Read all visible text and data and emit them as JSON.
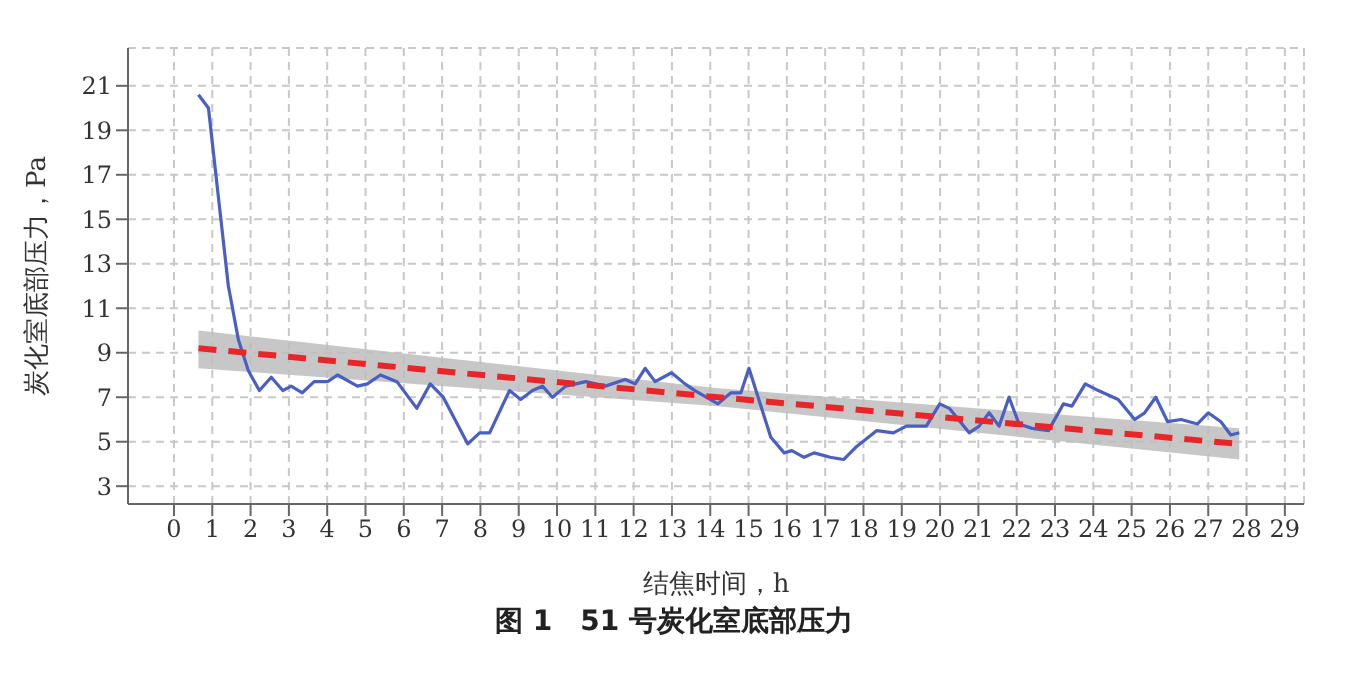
{
  "chart_data": {
    "type": "line",
    "title": "图 1　51 号炭化室底部压力",
    "xlabel": "结焦时间，h",
    "ylabel": "炭化室底部压力，Pa",
    "xlim": [
      -1.2,
      29.5
    ],
    "ylim": [
      2.2,
      22.7
    ],
    "xticks": [
      0,
      1,
      2,
      3,
      4,
      5,
      6,
      7,
      8,
      9,
      10,
      11,
      12,
      13,
      14,
      15,
      16,
      17,
      18,
      19,
      20,
      21,
      22,
      23,
      24,
      25,
      26,
      27,
      28,
      29
    ],
    "yticks": [
      3,
      5,
      7,
      9,
      11,
      13,
      15,
      17,
      19,
      21
    ],
    "grid": true,
    "series": [
      {
        "type": "line",
        "color": "#4a5fc1",
        "x": [
          0.64,
          0.9,
          1.42,
          1.68,
          1.94,
          2.23,
          2.54,
          2.84,
          3.06,
          3.35,
          3.66,
          4.01,
          4.27,
          4.79,
          5.05,
          5.39,
          5.82,
          6.34,
          6.69,
          7.03,
          7.67,
          7.98,
          8.24,
          8.76,
          9.05,
          9.36,
          9.62,
          9.88,
          10.23,
          10.75,
          11.26,
          11.78,
          12.04,
          12.3,
          12.56,
          12.99,
          13.34,
          13.6,
          14.2,
          14.54,
          14.8,
          15.01,
          15.58,
          15.93,
          16.13,
          16.45,
          16.71,
          17.13,
          17.48,
          17.83,
          18.35,
          18.78,
          19.12,
          19.64,
          19.99,
          20.24,
          20.76,
          21.02,
          21.28,
          21.54,
          21.8,
          22.06,
          22.4,
          22.83,
          23.22,
          23.44,
          23.79,
          24.13,
          24.65,
          25.08,
          25.34,
          25.63,
          25.94,
          26.29,
          26.72,
          27.0,
          27.33,
          27.59,
          27.81
        ],
        "values": [
          20.6,
          20.0,
          12.0,
          9.6,
          8.2,
          7.3,
          7.9,
          7.3,
          7.5,
          7.2,
          7.7,
          7.7,
          8.0,
          7.5,
          7.6,
          8.0,
          7.7,
          6.5,
          7.6,
          7.0,
          4.9,
          5.4,
          5.4,
          7.3,
          6.9,
          7.3,
          7.5,
          7.0,
          7.5,
          7.7,
          7.5,
          7.8,
          7.6,
          8.3,
          7.7,
          8.1,
          7.6,
          7.3,
          6.7,
          7.2,
          7.2,
          8.3,
          5.2,
          4.5,
          4.6,
          4.3,
          4.5,
          4.3,
          4.2,
          4.8,
          5.5,
          5.4,
          5.7,
          5.7,
          6.7,
          6.5,
          5.4,
          5.7,
          6.3,
          5.7,
          7.0,
          5.8,
          5.6,
          5.5,
          6.7,
          6.6,
          7.6,
          7.3,
          6.9,
          6.0,
          6.3,
          7.0,
          5.9,
          6.0,
          5.8,
          6.3,
          5.9,
          5.3,
          5.4
        ]
      },
      {
        "type": "line",
        "color": "#e8262a",
        "line_style": "dashed",
        "x": [
          0.64,
          14.2,
          27.81
        ],
        "values": [
          9.2,
          7.0,
          4.9
        ],
        "lower": [
          8.3,
          6.6,
          4.2
        ],
        "upper": [
          10.0,
          7.4,
          5.6
        ]
      }
    ]
  }
}
